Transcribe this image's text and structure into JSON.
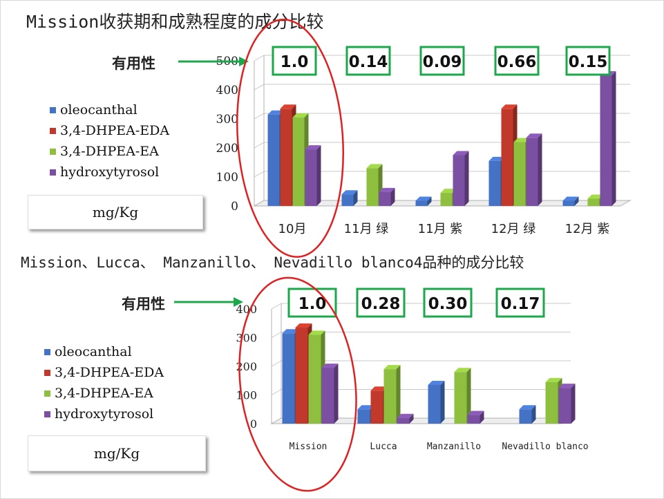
{
  "title_top": "Mission收获期和成熟程度的成分比较",
  "title_bottom": "Mission、Lucca、 Manzanillo、 Nevadillo blanco4品种的成分比较",
  "useful_label": "有用性",
  "unit_label": "mg/Kg",
  "colors": {
    "oleocanthal": "#4472c4",
    "dhpea_eda": "#c0392b",
    "dhpea_ea": "#8ebf3f",
    "hydroxytyrosol": "#7b4fa2",
    "box_border": "#1aa84a",
    "arrow": "#1aa84a",
    "circle": "#e02020"
  },
  "chart_data": [
    {
      "type": "bar",
      "title": "Mission收获期和成熟程度的成分比较",
      "categories": [
        "10月",
        "11月 绿",
        "11月 紫",
        "12月 绿",
        "12月 紫"
      ],
      "series": [
        {
          "name": "oleocanthal",
          "values": [
            315,
            40,
            18,
            155,
            18
          ]
        },
        {
          "name": "3,4-DHPEA-EDA",
          "values": [
            335,
            0,
            0,
            335,
            0
          ]
        },
        {
          "name": "3,4-DHPEA-EA",
          "values": [
            305,
            130,
            45,
            220,
            25
          ]
        },
        {
          "name": "hydroxytyrosol",
          "values": [
            195,
            48,
            175,
            235,
            450
          ]
        }
      ],
      "usefulness": [
        "1.0",
        "0.14",
        "0.09",
        "0.66",
        "0.15"
      ],
      "yticks": [
        "0",
        "100",
        "200",
        "300",
        "400",
        "500"
      ],
      "ylim": [
        0,
        500
      ],
      "unit": "mg/Kg",
      "legend_position": "left"
    },
    {
      "type": "bar",
      "title": "Mission、Lucca、 Manzanillo、 Nevadillo blanco4品种的成分比较",
      "categories": [
        "Mission",
        "Lucca",
        "Manzanillo",
        "Nevadillo blanco"
      ],
      "series": [
        {
          "name": "oleocanthal",
          "values": [
            315,
            50,
            135,
            50
          ]
        },
        {
          "name": "3,4-DHPEA-EDA",
          "values": [
            335,
            115,
            0,
            0
          ]
        },
        {
          "name": "3,4-DHPEA-EA",
          "values": [
            310,
            190,
            180,
            145
          ]
        },
        {
          "name": "hydroxytyrosol",
          "values": [
            195,
            20,
            30,
            125
          ]
        }
      ],
      "usefulness": [
        "1.0",
        "0.28",
        "0.30",
        "0.17"
      ],
      "yticks": [
        "0",
        "100",
        "200",
        "300",
        "400"
      ],
      "ylim": [
        0,
        400
      ],
      "unit": "mg/Kg",
      "legend_position": "left"
    }
  ]
}
